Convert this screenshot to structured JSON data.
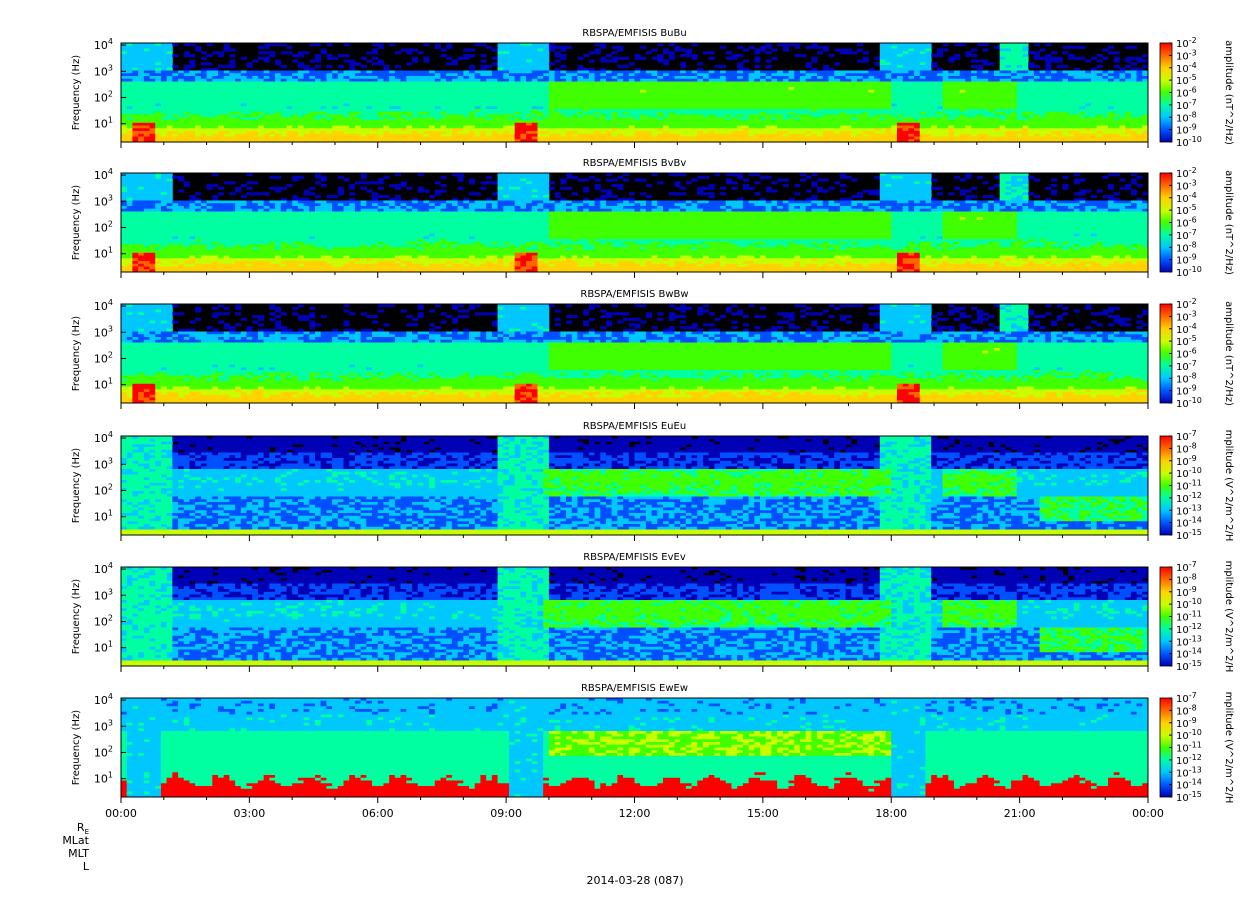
{
  "chart_data": {
    "type": "heatmap",
    "instrument": "RBSPA/EMFISIS",
    "date_label": "2014-03-28 (087)",
    "x_ticks": [
      "00:00",
      "03:00",
      "06:00",
      "09:00",
      "12:00",
      "15:00",
      "18:00",
      "21:00",
      "00:00"
    ],
    "x_range_hours": [
      0,
      24
    ],
    "orbit_labels": [
      "RE",
      "MLat",
      "MLT",
      "L"
    ],
    "ylabel": "Frequency (Hz)",
    "y_scale": "log",
    "y_range_hz": [
      2,
      12000
    ],
    "y_ticks": [
      {
        "base": "10",
        "exp": "1",
        "value": 10
      },
      {
        "base": "10",
        "exp": "2",
        "value": 100
      },
      {
        "base": "10",
        "exp": "3",
        "value": 1000
      },
      {
        "base": "10",
        "exp": "4",
        "value": 10000
      }
    ],
    "colormap": [
      "#0000b4",
      "#0050ff",
      "#00c8ff",
      "#00ffa0",
      "#40ff00",
      "#c8ff00",
      "#ffd200",
      "#ff6400",
      "#ff0000"
    ],
    "panels": [
      {
        "title": "RBSPA/EMFISIS  BuBu",
        "kind": "B",
        "colorbar_label": "amplitude (nT^2/Hz)",
        "colorbar_ticks": [
          "-2",
          "-3",
          "-4",
          "-5",
          "-6",
          "-7",
          "-8",
          "-9",
          "-10"
        ]
      },
      {
        "title": "RBSPA/EMFISIS  BvBv",
        "kind": "B",
        "colorbar_label": "amplitude (nT^2/Hz)",
        "colorbar_ticks": [
          "-2",
          "-3",
          "-4",
          "-5",
          "-6",
          "-7",
          "-8",
          "-9",
          "-10"
        ]
      },
      {
        "title": "RBSPA/EMFISIS  BwBw",
        "kind": "B",
        "colorbar_label": "amplitude (nT^2/Hz)",
        "colorbar_ticks": [
          "-2",
          "-3",
          "-4",
          "-5",
          "-6",
          "-7",
          "-8",
          "-9",
          "-10"
        ]
      },
      {
        "title": "RBSPA/EMFISIS  EuEu",
        "kind": "E",
        "colorbar_label": "mplitude (V^2/m^2/H",
        "colorbar_ticks": [
          "-7",
          "-8",
          "-9",
          "-10",
          "-11",
          "-12",
          "-13",
          "-14",
          "-15"
        ]
      },
      {
        "title": "RBSPA/EMFISIS  EvEv",
        "kind": "E",
        "colorbar_label": "mplitude (V^2/m^2/H",
        "colorbar_ticks": [
          "-7",
          "-8",
          "-9",
          "-10",
          "-11",
          "-12",
          "-13",
          "-14",
          "-15"
        ]
      },
      {
        "title": "RBSPA/EMFISIS  EwEw",
        "kind": "Ew",
        "colorbar_label": "mplitude (V^2/m^2/H",
        "colorbar_ticks": [
          "-7",
          "-8",
          "-9",
          "-10",
          "-11",
          "-12",
          "-13",
          "-14",
          "-15"
        ]
      }
    ]
  }
}
